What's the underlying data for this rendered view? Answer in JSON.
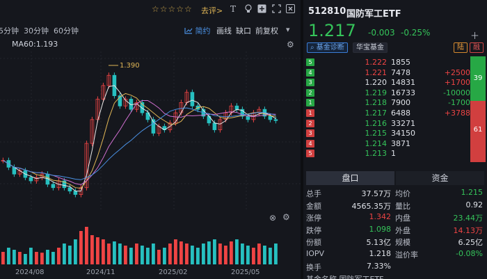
{
  "toolbar": {
    "stars": "☆☆☆☆☆",
    "rate_label": "去评>",
    "icons": [
      "text-icon",
      "bulb-icon",
      "add-square-icon",
      "expand-icon",
      "close-icon"
    ]
  },
  "periods": [
    "5分钟",
    "30分钟",
    "60分钟"
  ],
  "chart_options": {
    "simple": "简约",
    "line": "画线",
    "gap": "缺口",
    "fq": "前复权"
  },
  "ma_label": "MA60:1.193",
  "chart_data": {
    "type": "line",
    "title": "",
    "xlabel": "",
    "ylabel": "",
    "x_ticks": [
      "2024/08",
      "2024/11",
      "2025/02",
      "2025/05"
    ],
    "annotations": [
      {
        "text": "1.390"
      }
    ],
    "series": [
      {
        "values": [
          1.1,
          1.08,
          1.06,
          1.07,
          1.05,
          1.04,
          1.05,
          1.06,
          1.03,
          1.02,
          1.04,
          1.02,
          1.01,
          1.0,
          1.02,
          1.15,
          1.22,
          1.28,
          1.32,
          1.35,
          1.29,
          1.26,
          1.28,
          1.25,
          1.27,
          1.24,
          1.22,
          1.18,
          1.2,
          1.19,
          1.21,
          1.24,
          1.27,
          1.3,
          1.26,
          1.25,
          1.23,
          1.21,
          1.19,
          1.22,
          1.24,
          1.26,
          1.25,
          1.23,
          1.22,
          1.24,
          1.25,
          1.23,
          1.22,
          1.217
        ]
      }
    ],
    "volume": [
      0.3,
      0.4,
      0.35,
      0.3,
      0.25,
      0.4,
      0.3,
      0.28,
      0.35,
      0.3,
      0.4,
      0.5,
      0.45,
      0.6,
      0.8,
      0.9,
      0.7,
      0.65,
      0.6,
      0.5,
      0.55,
      0.5,
      0.45,
      0.4,
      0.5,
      0.45,
      0.4,
      0.5,
      0.35,
      0.4,
      0.5,
      0.6,
      0.55,
      0.5,
      0.45,
      0.4,
      0.5,
      0.55,
      0.6,
      0.5,
      0.45,
      0.55,
      0.6,
      0.5,
      0.45,
      0.4,
      0.5,
      0.45,
      0.4,
      0.5
    ]
  },
  "x_labels": [
    "2024/08",
    "2024/11",
    "2025/02",
    "2025/05"
  ],
  "fund": {
    "code": "512810",
    "name": "国防军工ETF",
    "price": "1.217",
    "change": "-0.003",
    "change_pct": "-0.25%",
    "badge_diag": "基金诊断",
    "badge_hb": "华宝基金",
    "badge_lu": "陆",
    "badge_rong": "融"
  },
  "orderbook": {
    "asks": [
      {
        "level": "5",
        "price": "1.222",
        "qty": "1855",
        "delta": ""
      },
      {
        "level": "4",
        "price": "1.221",
        "qty": "7478",
        "delta": "+2500"
      },
      {
        "level": "3",
        "price": "1.220",
        "qty": "14831",
        "delta": "+1700"
      },
      {
        "level": "2",
        "price": "1.219",
        "qty": "16733",
        "delta": "-10000"
      },
      {
        "level": "1",
        "price": "1.218",
        "qty": "7900",
        "delta": "-1700"
      }
    ],
    "bids": [
      {
        "level": "1",
        "price": "1.217",
        "qty": "6488",
        "delta": "+3788"
      },
      {
        "level": "2",
        "price": "1.216",
        "qty": "33271",
        "delta": ""
      },
      {
        "level": "3",
        "price": "1.215",
        "qty": "34150",
        "delta": ""
      },
      {
        "level": "4",
        "price": "1.214",
        "qty": "3871",
        "delta": ""
      },
      {
        "level": "5",
        "price": "1.213",
        "qty": "1",
        "delta": ""
      }
    ],
    "ratio_green": "39",
    "ratio_red": "61"
  },
  "tabs": {
    "pankou": "盘口",
    "fund": "资金"
  },
  "stats": [
    {
      "l1": "总手",
      "v1": "37.57万",
      "l2": "均价",
      "v2": "1.215",
      "c1": "white",
      "c2": "green"
    },
    {
      "l1": "金额",
      "v1": "4565.35万",
      "l2": "量比",
      "v2": "0.92",
      "c1": "white",
      "c2": "white"
    },
    {
      "l1": "涨停",
      "v1": "1.342",
      "l2": "内盘",
      "v2": "23.44万",
      "c1": "red",
      "c2": "green"
    },
    {
      "l1": "跌停",
      "v1": "1.098",
      "l2": "外盘",
      "v2": "14.13万",
      "c1": "green",
      "c2": "red"
    },
    {
      "l1": "份额",
      "v1": "5.13亿",
      "l2": "规模",
      "v2": "6.25亿",
      "c1": "white",
      "c2": "white"
    },
    {
      "l1": "IOPV",
      "v1": "1.218",
      "l2": "溢价率",
      "v2": "-0.08%",
      "c1": "white",
      "c2": "green"
    },
    {
      "l1": "换手",
      "v1": "7.33%",
      "l2": "",
      "v2": "",
      "c1": "white",
      "c2": "white"
    }
  ],
  "stats_tail": "基金名称 国防军工ETF"
}
